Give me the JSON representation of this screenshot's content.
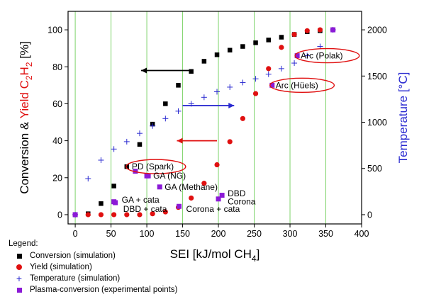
{
  "chart_data": {
    "type": "scatter",
    "xlabel_prefix": "SEI [kJ/mol CH",
    "xlabel_sub": "4",
    "xlabel_suffix": "]",
    "ylabel_left_parts": [
      "Conversion & ",
      "Yield C",
      "2",
      "H",
      "2",
      " [%]"
    ],
    "ylabel_right": "Temperature [°C]",
    "xlim": [
      -10,
      400
    ],
    "ylim_left": [
      -5,
      110
    ],
    "ylim_right": [
      -100,
      2200
    ],
    "x_ticks": [
      0,
      50,
      100,
      150,
      200,
      250,
      300,
      350,
      400
    ],
    "y_ticks_left": [
      0,
      20,
      40,
      60,
      80,
      100
    ],
    "y_ticks_right": [
      0,
      500,
      1000,
      1500,
      2000
    ],
    "green_gridlines_x": [
      0,
      50,
      100,
      150,
      200,
      250,
      300,
      350
    ],
    "series": [
      {
        "name": "Conversion (simulation)",
        "axis": "left",
        "marker": "square",
        "color": "#000000",
        "x": [
          0,
          18,
          36,
          54,
          72,
          90,
          108,
          126,
          144,
          162,
          180,
          198,
          216,
          234,
          252,
          270,
          288,
          306,
          324,
          342,
          360
        ],
        "y": [
          0,
          0.5,
          6,
          15.5,
          26,
          38,
          49,
          60,
          70,
          77.5,
          83,
          86.5,
          89,
          91,
          93,
          94.5,
          96,
          97.5,
          99,
          99.5,
          100
        ]
      },
      {
        "name": "Yield (simulation)",
        "axis": "left",
        "marker": "circle",
        "color": "#e01010",
        "x": [
          0,
          18,
          36,
          54,
          72,
          90,
          108,
          126,
          144,
          162,
          180,
          198,
          216,
          234,
          252,
          270,
          288,
          306,
          324,
          342,
          360
        ],
        "y": [
          0,
          0,
          0,
          0,
          0,
          0,
          0.5,
          1.5,
          4,
          9,
          17,
          27,
          39.5,
          52,
          65.5,
          79,
          90.5,
          97.5,
          99.5,
          100,
          100
        ]
      },
      {
        "name": "Temperature (simulation)",
        "axis": "right",
        "marker": "plus",
        "color": "#2a2ad0",
        "x": [
          0,
          18,
          36,
          54,
          72,
          90,
          108,
          126,
          144,
          162,
          180,
          198,
          216,
          234,
          252,
          270,
          288,
          306,
          324,
          342,
          360
        ],
        "y": [
          0,
          390,
          590,
          710,
          790,
          880,
          960,
          1040,
          1120,
          1200,
          1270,
          1330,
          1380,
          1430,
          1470,
          1520,
          1580,
          1640,
          1720,
          1820,
          2000
        ]
      },
      {
        "name": "Plasma-conversion (experimental points)",
        "axis": "left",
        "marker": "square",
        "color": "#8b1ad6",
        "x": [
          0,
          54,
          56,
          84,
          100,
          102,
          118,
          145,
          200,
          205,
          275,
          310,
          360
        ],
        "y": [
          0,
          7,
          6.5,
          23.5,
          21,
          21,
          15,
          4.5,
          8.5,
          10.5,
          70,
          86,
          100
        ]
      }
    ],
    "annotations": [
      {
        "text": "Arc (Polak)",
        "x": 310,
        "y": 86,
        "ellipse": true
      },
      {
        "text": "Arc (Hüels)",
        "x": 275,
        "y": 70,
        "ellipse": true
      },
      {
        "text": "PD (Spark)",
        "x": 74,
        "y": 26,
        "ellipse": true
      },
      {
        "text": "GA (NG)",
        "x": 104,
        "y": 21,
        "ellipse": false
      },
      {
        "text": "GA (Methane)",
        "x": 120,
        "y": 15,
        "ellipse": false
      },
      {
        "text": "GA + cata",
        "x": 60,
        "y": 8,
        "ellipse": false
      },
      {
        "text": "DBD + cata",
        "x": 62,
        "y": 3,
        "ellipse": false
      },
      {
        "text": "Corona + cata",
        "x": 150,
        "y": 3,
        "ellipse": false
      },
      {
        "text": "DBD",
        "x": 208,
        "y": 11.5,
        "ellipse": false
      },
      {
        "text": "Corona",
        "x": 208,
        "y": 7,
        "ellipse": false
      }
    ],
    "arrows": [
      {
        "color": "#000000",
        "x_from": 162,
        "x_to": 92,
        "y": 78
      },
      {
        "color": "#2a2ad0",
        "x_from": 150,
        "x_to": 222,
        "y": 59
      },
      {
        "color": "#e01010",
        "x_from": 198,
        "x_to": 142,
        "y": 40
      }
    ]
  },
  "legend": {
    "title": "Legend:",
    "items": [
      {
        "label": "Conversion (simulation)",
        "symbol": "square"
      },
      {
        "label": "Yield (simulation)",
        "symbol": "circle"
      },
      {
        "label": "Temperature (simulation)",
        "symbol": "plus"
      },
      {
        "label": "Plasma-conversion (experimental points)",
        "symbol": "square-purple"
      }
    ]
  },
  "colors": {
    "axis_label_red": "#e01010",
    "axis_label_blue": "#2a2ad0",
    "grid_green": "#7ed36a",
    "ellipse_red": "#e01010"
  }
}
